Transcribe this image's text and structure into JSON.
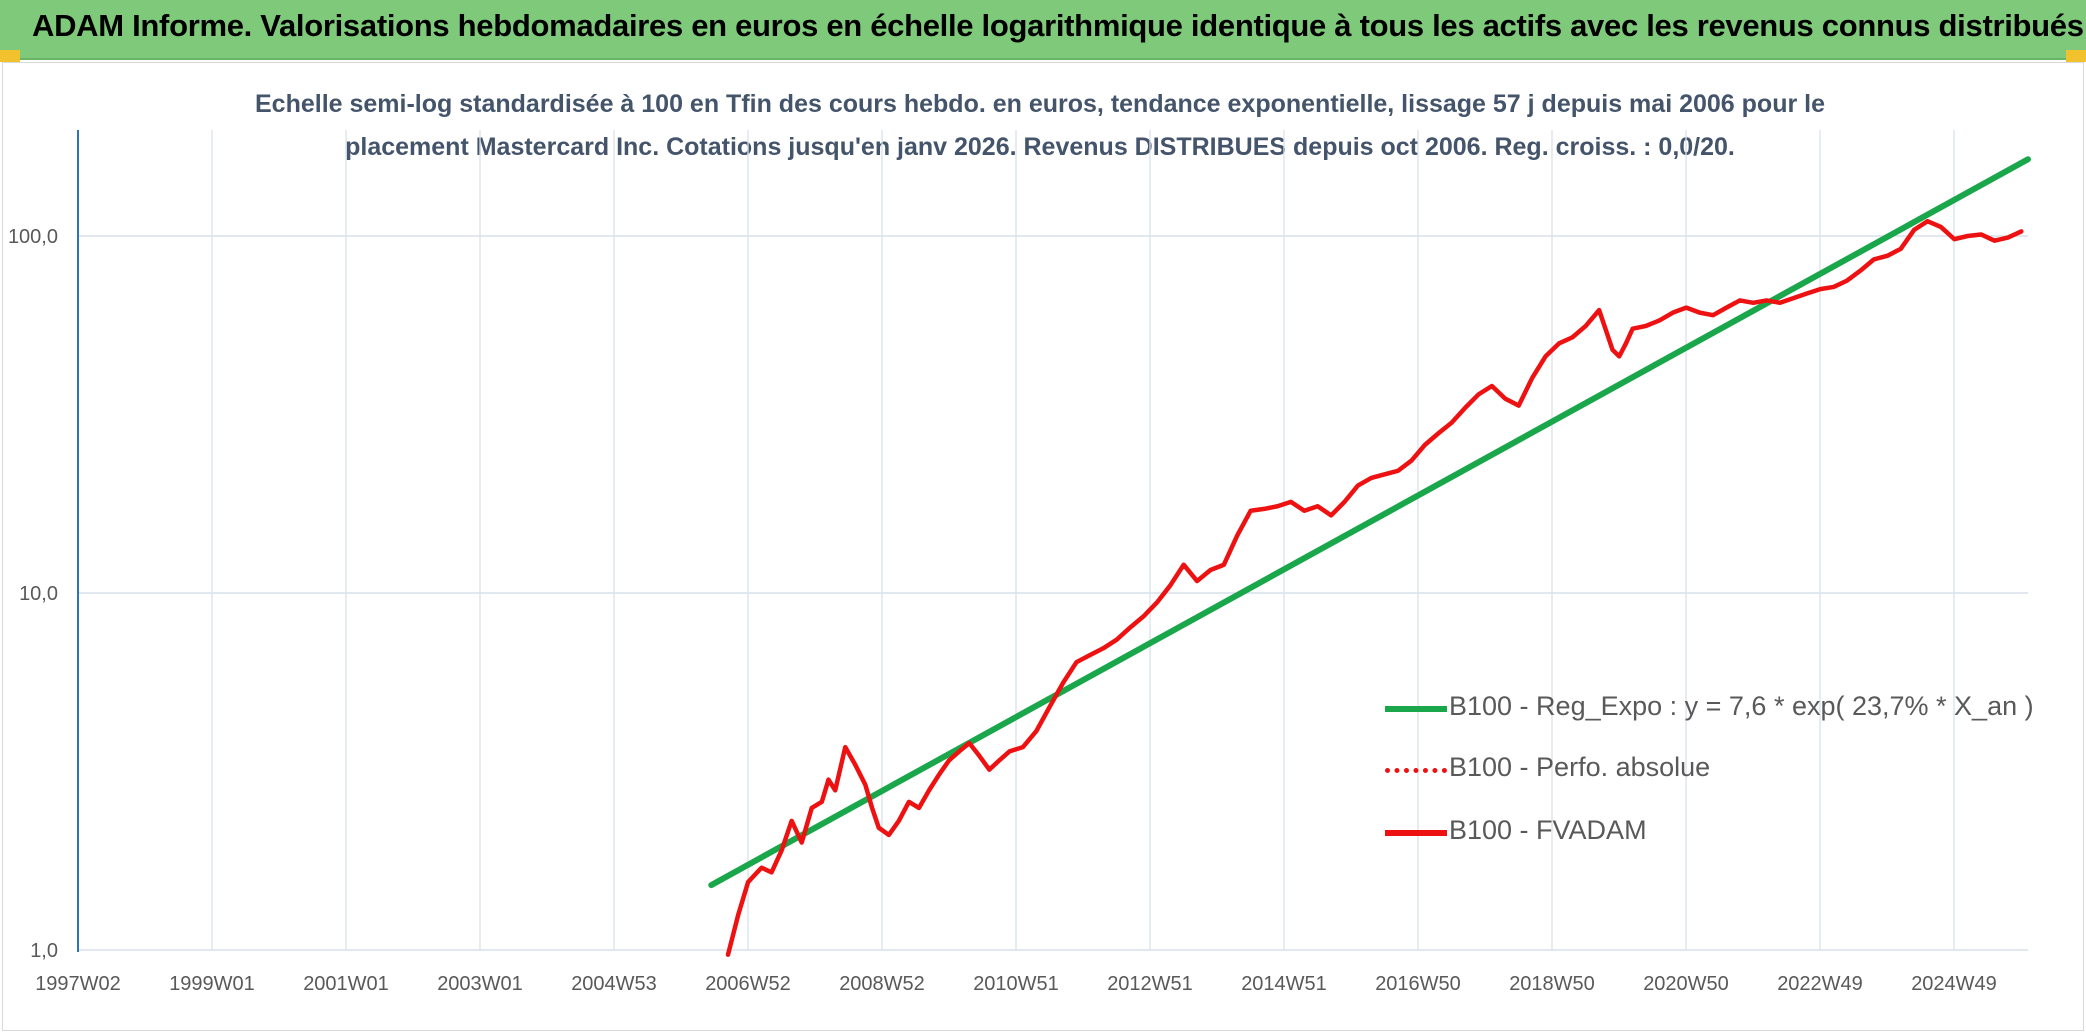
{
  "header": {
    "title": "ADAM Informe. Valorisations hebdomadaires en euros en échelle logarithmique identique à tous les actifs avec les revenus connus distribués"
  },
  "colors": {
    "banner": "#7fc97a",
    "corner": "#f2c12e",
    "trend": "#1aa64a",
    "fvadam": "#ee1111",
    "axis": "#2e75b6",
    "grid": "#d9e1ea"
  },
  "chart_data": {
    "type": "line",
    "subtitle_line1": "Echelle semi-log standardisée à 100 en Tfin des cours hebdo. en euros, tendance exponentielle, lissage 57 j depuis mai 2006 pour le",
    "subtitle_line2": "placement Mastercard Inc. Cotations jusqu'en janv 2026. Revenus DISTRIBUES depuis oct 2006. Reg. croiss. : 0,0/20.",
    "x_tick_labels": [
      "1997W02",
      "1999W01",
      "2001W01",
      "2003W01",
      "2004W53",
      "2006W52",
      "2008W52",
      "2010W51",
      "2012W51",
      "2014W51",
      "2016W50",
      "2018W50",
      "2020W50",
      "2022W49",
      "2024W49"
    ],
    "y_scale": "log",
    "y_tick_labels": [
      "100,0",
      "10,0",
      "1,0"
    ],
    "y_ticks": [
      100,
      10,
      1
    ],
    "ylim": [
      1,
      200
    ],
    "xlim": [
      1997.0,
      2026.1
    ],
    "grid": true,
    "legend_position": "right",
    "legend": [
      {
        "label": "B100 - Reg_Expo : y = 7,6 * exp( 23,7% *  X_an )",
        "style": "solid-thick",
        "color": "#1aa64a"
      },
      {
        "label": "B100 - Perfo. absolue",
        "style": "dotted",
        "color": "#ee1111"
      },
      {
        "label": "B100 - FVADAM",
        "style": "solid",
        "color": "#ee1111"
      }
    ],
    "series": [
      {
        "name": "B100 - Reg_Expo : y = 7,6 * exp( 23,7% *  X_an )",
        "x": [
          2006.45,
          2026.1
        ],
        "y": [
          1.52,
          164
        ]
      },
      {
        "name": "B100 - FVADAM",
        "x": [
          2006.7,
          2006.85,
          2007.0,
          2007.2,
          2007.35,
          2007.5,
          2007.65,
          2007.8,
          2007.95,
          2008.1,
          2008.2,
          2008.3,
          2008.45,
          2008.6,
          2008.75,
          2008.85,
          2008.95,
          2009.1,
          2009.25,
          2009.4,
          2009.55,
          2009.7,
          2009.85,
          2010.0,
          2010.15,
          2010.3,
          2010.45,
          2010.6,
          2010.75,
          2010.9,
          2011.1,
          2011.3,
          2011.5,
          2011.7,
          2011.9,
          2012.1,
          2012.3,
          2012.5,
          2012.7,
          2012.9,
          2013.1,
          2013.3,
          2013.5,
          2013.7,
          2013.9,
          2014.1,
          2014.3,
          2014.5,
          2014.7,
          2014.9,
          2015.1,
          2015.3,
          2015.5,
          2015.7,
          2015.9,
          2016.1,
          2016.3,
          2016.5,
          2016.7,
          2016.9,
          2017.1,
          2017.3,
          2017.5,
          2017.7,
          2017.9,
          2018.1,
          2018.3,
          2018.5,
          2018.7,
          2018.9,
          2019.1,
          2019.3,
          2019.5,
          2019.7,
          2019.9,
          2020.0,
          2020.1,
          2020.2,
          2020.4,
          2020.6,
          2020.8,
          2021.0,
          2021.2,
          2021.4,
          2021.6,
          2021.8,
          2022.0,
          2022.2,
          2022.4,
          2022.6,
          2022.8,
          2023.0,
          2023.2,
          2023.4,
          2023.6,
          2023.8,
          2024.0,
          2024.2,
          2024.4,
          2024.6,
          2024.8,
          2025.0,
          2025.2,
          2025.4,
          2025.6,
          2025.8,
          2026.0
        ],
        "y": [
          0.97,
          1.25,
          1.55,
          1.7,
          1.65,
          1.9,
          2.3,
          2.0,
          2.5,
          2.6,
          3.0,
          2.8,
          3.7,
          3.3,
          2.9,
          2.5,
          2.2,
          2.1,
          2.3,
          2.6,
          2.5,
          2.8,
          3.1,
          3.4,
          3.6,
          3.8,
          3.5,
          3.2,
          3.4,
          3.6,
          3.7,
          4.1,
          4.8,
          5.6,
          6.4,
          6.7,
          7.0,
          7.4,
          8.0,
          8.6,
          9.4,
          10.5,
          12.0,
          10.8,
          11.6,
          12.0,
          14.5,
          17.0,
          17.2,
          17.5,
          18.0,
          17.0,
          17.5,
          16.5,
          18.0,
          20.0,
          21.0,
          21.5,
          22.0,
          23.5,
          26.0,
          28.0,
          30.0,
          33.0,
          36.0,
          38.0,
          35.0,
          33.5,
          40.0,
          46.0,
          50.0,
          52.0,
          56.0,
          62.0,
          48.0,
          46.0,
          50.0,
          55.0,
          56.0,
          58.0,
          61.0,
          63.0,
          61.0,
          60.0,
          63.0,
          66.0,
          65.0,
          66.0,
          65.0,
          67.0,
          69.0,
          71.0,
          72.0,
          75.0,
          80.0,
          86.0,
          88.0,
          92.0,
          104.0,
          110.0,
          106.0,
          98.0,
          100.0,
          101.0,
          97.0,
          99.0,
          103.0
        ]
      }
    ]
  }
}
